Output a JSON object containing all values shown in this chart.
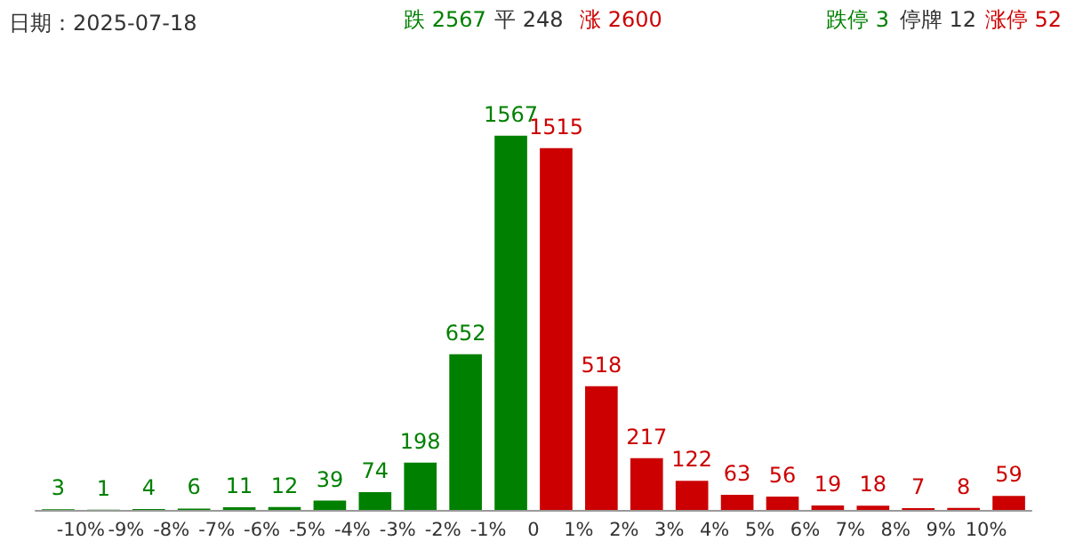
{
  "chart_data": {
    "type": "bar",
    "title": "日期：2025-07-18",
    "annotations": [
      "跌 2567",
      "平 248",
      "涨 2600",
      "跌停 3",
      "停牌 12",
      "涨停 52"
    ],
    "x": [
      -10.5,
      -9.5,
      -8.5,
      -7.5,
      -6.5,
      -5.5,
      -4.5,
      -3.5,
      -2.5,
      -1.5,
      -0.5,
      0.5,
      1.5,
      2.5,
      3.5,
      4.5,
      5.5,
      6.5,
      7.5,
      8.5,
      9.5,
      10.5
    ],
    "values": [
      3,
      1,
      4,
      6,
      11,
      12,
      39,
      74,
      198,
      652,
      1567,
      1515,
      518,
      217,
      122,
      63,
      56,
      19,
      18,
      7,
      8,
      59
    ],
    "colors": [
      "#008000",
      "#008000",
      "#008000",
      "#008000",
      "#008000",
      "#008000",
      "#008000",
      "#008000",
      "#008000",
      "#008000",
      "#008000",
      "#cc0000",
      "#cc0000",
      "#cc0000",
      "#cc0000",
      "#cc0000",
      "#cc0000",
      "#cc0000",
      "#cc0000",
      "#cc0000",
      "#cc0000",
      "#cc0000"
    ],
    "xlim": [
      -11,
      11
    ],
    "xticks": [
      {
        "value": -10,
        "label": "-10%"
      },
      {
        "value": -9,
        "label": "-9%"
      },
      {
        "value": -8,
        "label": "-8%"
      },
      {
        "value": -7,
        "label": "-7%"
      },
      {
        "value": -6,
        "label": "-6%"
      },
      {
        "value": -5,
        "label": "-5%"
      },
      {
        "value": -4,
        "label": "-4%"
      },
      {
        "value": -3,
        "label": "-3%"
      },
      {
        "value": -2,
        "label": "-2%"
      },
      {
        "value": -1,
        "label": "-1%"
      },
      {
        "value": 0,
        "label": "0"
      },
      {
        "value": 1,
        "label": "1%"
      },
      {
        "value": 2,
        "label": "2%"
      },
      {
        "value": 3,
        "label": "3%"
      },
      {
        "value": 4,
        "label": "4%"
      },
      {
        "value": 5,
        "label": "5%"
      },
      {
        "value": 6,
        "label": "6%"
      },
      {
        "value": 7,
        "label": "7%"
      },
      {
        "value": 8,
        "label": "8%"
      },
      {
        "value": 9,
        "label": "9%"
      },
      {
        "value": 10,
        "label": "10%"
      }
    ],
    "data_labels": true,
    "grid": false,
    "tick_labels": "x"
  }
}
